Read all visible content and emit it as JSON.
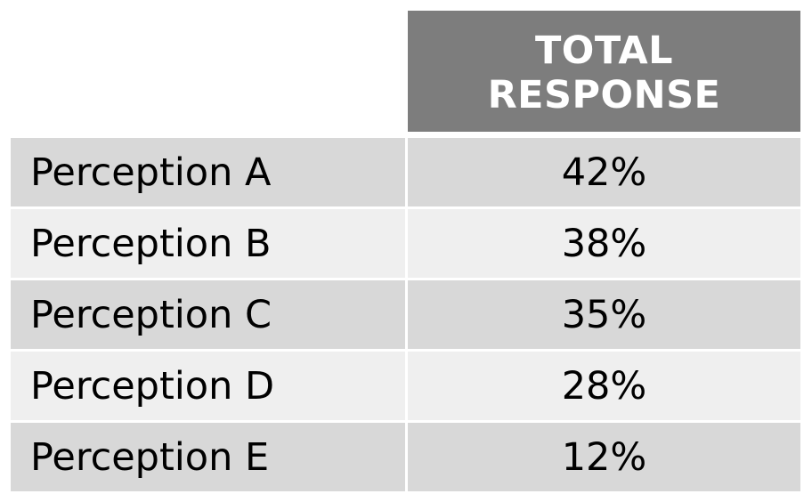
{
  "chart_data": {
    "type": "table",
    "header": [
      "TOTAL",
      "RESPONSE"
    ],
    "rows": [
      {
        "label": "Perception A",
        "value": "42%"
      },
      {
        "label": "Perception B",
        "value": "38%"
      },
      {
        "label": "Perception C",
        "value": "35%"
      },
      {
        "label": "Perception D",
        "value": "28%"
      },
      {
        "label": "Perception E",
        "value": "12%"
      }
    ],
    "values": [
      42,
      38,
      35,
      28,
      12
    ],
    "categories": [
      "Perception A",
      "Perception B",
      "Perception C",
      "Perception D",
      "Perception E"
    ]
  },
  "colors": {
    "header_bg": "#7d7d7d",
    "header_text": "#ffffff",
    "row_dark": "#d8d8d8",
    "row_light": "#efefef"
  }
}
